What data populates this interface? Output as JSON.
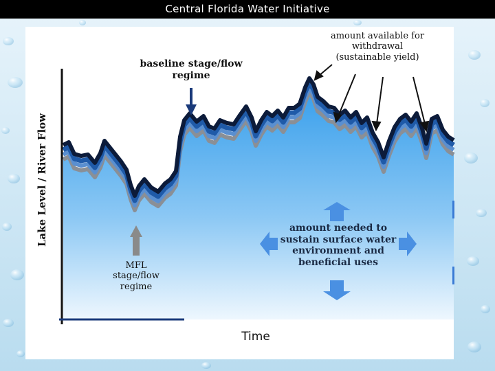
{
  "header": {
    "title": "Central Florida Water Initiative"
  },
  "diagram": {
    "y_axis_label": "Lake Level / River Flow",
    "x_axis_label": "Time",
    "labels": {
      "baseline": "baseline stage/flow regime",
      "sustainable_yield": "amount available for withdrawal (sustainable yield)",
      "environment_needs": "amount needed to sustain surface water environment and beneficial uses",
      "mfl": "MFL stage/flow regime"
    },
    "colors": {
      "background_blue": "#cfe6f3",
      "band_dark": "#0c1b3a",
      "band_mid": "#1f5aa8",
      "band_light": "#5a8fd0",
      "band_gray": "#8a8f96",
      "fill_top": "#3aa0ec",
      "fill_bottom": "#e8f4fd",
      "arrow_blue": "#4a90e2",
      "arrow_navy": "#1a3a7a",
      "arrow_gray": "#8a8a8a"
    }
  }
}
